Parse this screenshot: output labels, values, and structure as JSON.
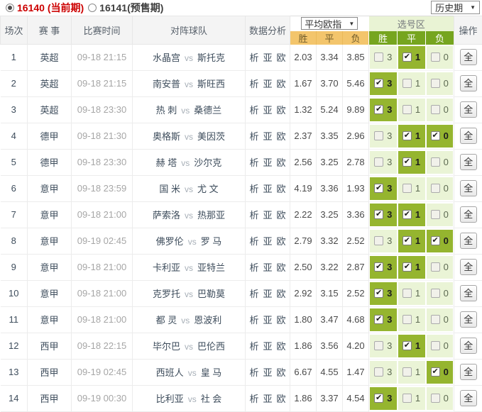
{
  "topbar": {
    "period_current": {
      "label": "16140 (当前期)",
      "selected": true
    },
    "period_presale": {
      "label": "16141(预售期)",
      "selected": false
    },
    "history_select": "历史期"
  },
  "table": {
    "headers": {
      "match_no": "场次",
      "league": "赛 事",
      "time": "比赛时间",
      "teams": "对阵球队",
      "analysis": "数据分析",
      "odds_group": "平均欧指",
      "selection_group": "选号区",
      "win": "胜",
      "draw": "平",
      "lose": "负",
      "action": "操作"
    },
    "analysis_links": [
      "析",
      "亚",
      "欧"
    ],
    "vs_label": "vs",
    "select_all_label": "全",
    "checkbox_labels": {
      "win": "3",
      "draw": "1",
      "lose": "0"
    },
    "rows": [
      {
        "no": "1",
        "league": "英超",
        "time": "09-18 21:15",
        "home": "水晶宫",
        "away": "斯托克",
        "odds": [
          "2.03",
          "3.34",
          "3.85"
        ],
        "picks": [
          false,
          true,
          false
        ]
      },
      {
        "no": "2",
        "league": "英超",
        "time": "09-18 21:15",
        "home": "南安普",
        "away": "斯旺西",
        "odds": [
          "1.67",
          "3.70",
          "5.46"
        ],
        "picks": [
          true,
          false,
          false
        ]
      },
      {
        "no": "3",
        "league": "英超",
        "time": "09-18 23:30",
        "home": "热 刺",
        "away": "桑德兰",
        "odds": [
          "1.32",
          "5.24",
          "9.89"
        ],
        "picks": [
          true,
          false,
          false
        ]
      },
      {
        "no": "4",
        "league": "德甲",
        "time": "09-18 21:30",
        "home": "奥格斯",
        "away": "美因茨",
        "odds": [
          "2.37",
          "3.35",
          "2.96"
        ],
        "picks": [
          false,
          true,
          true
        ]
      },
      {
        "no": "5",
        "league": "德甲",
        "time": "09-18 23:30",
        "home": "赫 塔",
        "away": "沙尔克",
        "odds": [
          "2.56",
          "3.25",
          "2.78"
        ],
        "picks": [
          false,
          true,
          false
        ]
      },
      {
        "no": "6",
        "league": "意甲",
        "time": "09-18 23:59",
        "home": "国 米",
        "away": "尤 文",
        "odds": [
          "4.19",
          "3.36",
          "1.93"
        ],
        "picks": [
          true,
          false,
          false
        ]
      },
      {
        "no": "7",
        "league": "意甲",
        "time": "09-18 21:00",
        "home": "萨索洛",
        "away": "热那亚",
        "odds": [
          "2.22",
          "3.25",
          "3.36"
        ],
        "picks": [
          true,
          true,
          false
        ]
      },
      {
        "no": "8",
        "league": "意甲",
        "time": "09-19 02:45",
        "home": "佛罗伦",
        "away": "罗 马",
        "odds": [
          "2.79",
          "3.32",
          "2.52"
        ],
        "picks": [
          false,
          true,
          true
        ]
      },
      {
        "no": "9",
        "league": "意甲",
        "time": "09-18 21:00",
        "home": "卡利亚",
        "away": "亚特兰",
        "odds": [
          "2.50",
          "3.22",
          "2.87"
        ],
        "picks": [
          true,
          true,
          false
        ]
      },
      {
        "no": "10",
        "league": "意甲",
        "time": "09-18 21:00",
        "home": "克罗托",
        "away": "巴勒莫",
        "odds": [
          "2.92",
          "3.15",
          "2.52"
        ],
        "picks": [
          true,
          false,
          false
        ]
      },
      {
        "no": "11",
        "league": "意甲",
        "time": "09-18 21:00",
        "home": "都 灵",
        "away": "恩波利",
        "odds": [
          "1.80",
          "3.47",
          "4.68"
        ],
        "picks": [
          true,
          false,
          false
        ]
      },
      {
        "no": "12",
        "league": "西甲",
        "time": "09-18 22:15",
        "home": "毕尔巴",
        "away": "巴伦西",
        "odds": [
          "1.86",
          "3.56",
          "4.20"
        ],
        "picks": [
          false,
          true,
          false
        ]
      },
      {
        "no": "13",
        "league": "西甲",
        "time": "09-19 02:45",
        "home": "西班人",
        "away": "皇 马",
        "odds": [
          "6.67",
          "4.55",
          "1.47"
        ],
        "picks": [
          false,
          false,
          true
        ]
      },
      {
        "no": "14",
        "league": "西甲",
        "time": "09-19 00:30",
        "home": "比利亚",
        "away": "社 会",
        "odds": [
          "1.86",
          "3.37",
          "4.54"
        ],
        "picks": [
          true,
          false,
          false
        ]
      }
    ]
  },
  "colors": {
    "accent_red": "#cc0000",
    "orange_header": "#f3c56c",
    "green_header": "#76a51f",
    "green_checked": "#95b52f",
    "green_light": "#eaf4d6",
    "text_dark": "#3e4d5c"
  }
}
